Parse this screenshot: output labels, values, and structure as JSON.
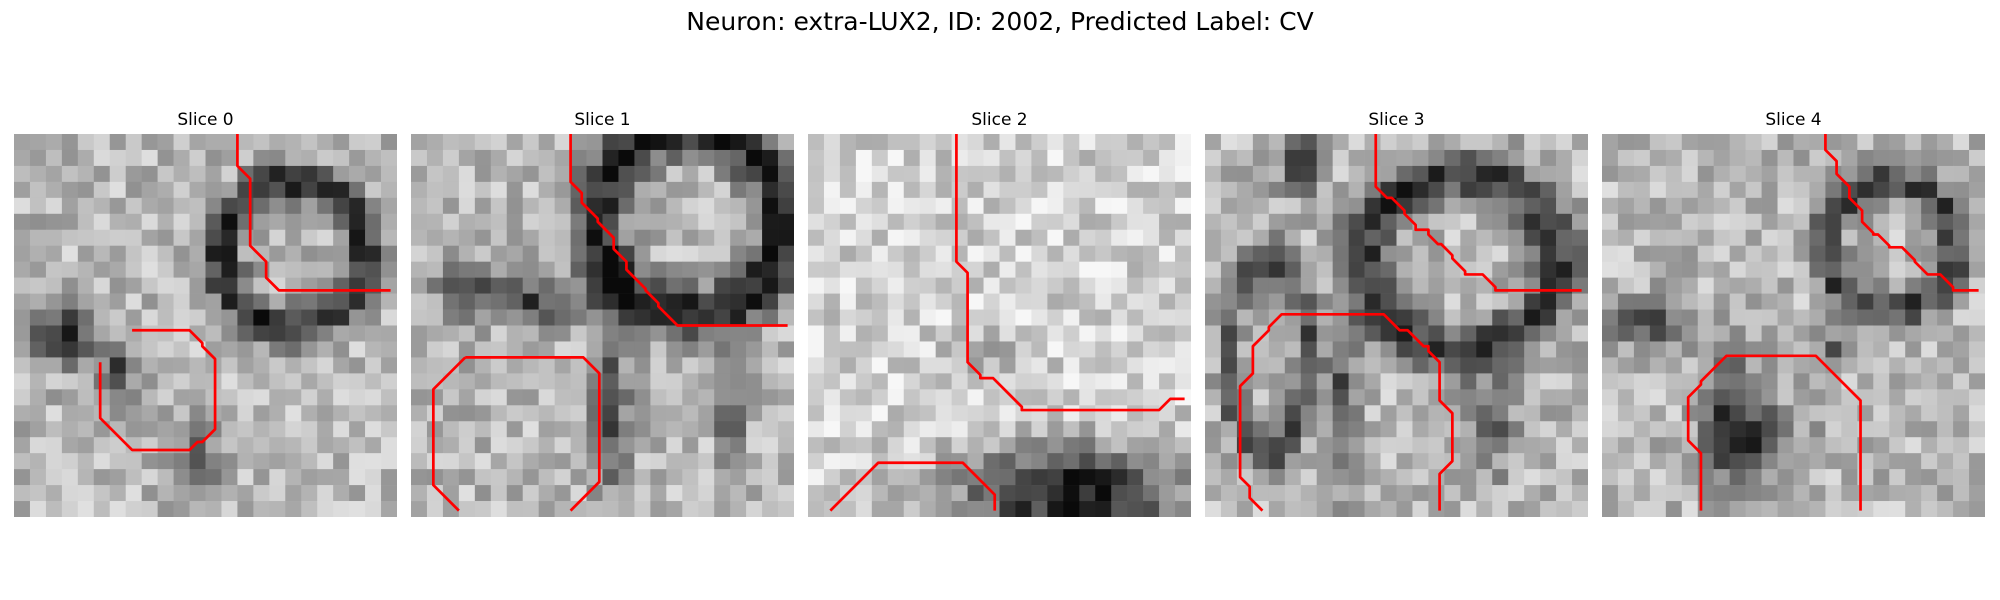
{
  "title": "Neuron: extra-LUX2, ID: 2002, Predicted Label: CV",
  "colors": {
    "contour": "#ff0000",
    "background": "#ffffff"
  },
  "grid": {
    "cols": 24,
    "rows": 24
  },
  "panels": [
    {
      "title": "Slice 0",
      "contours": [
        [
          [
            14.0,
            0.0
          ],
          [
            14.0,
            2.0
          ],
          [
            14.8,
            2.8
          ],
          [
            14.8,
            7.0
          ],
          [
            15.8,
            8.0
          ],
          [
            15.8,
            9.0
          ],
          [
            16.6,
            9.8
          ],
          [
            23.6,
            9.8
          ]
        ],
        [
          [
            7.4,
            12.3
          ],
          [
            11.0,
            12.3
          ],
          [
            11.8,
            13.1
          ],
          [
            11.8,
            13.3
          ],
          [
            12.6,
            14.1
          ],
          [
            12.6,
            18.5
          ],
          [
            11.8,
            19.3
          ],
          [
            11.5,
            19.3
          ],
          [
            11.0,
            19.8
          ],
          [
            7.4,
            19.8
          ],
          [
            5.4,
            17.8
          ],
          [
            5.4,
            14.3
          ]
        ]
      ]
    },
    {
      "title": "Slice 1",
      "contours": [
        [
          [
            10.0,
            0.0
          ],
          [
            10.0,
            3.0
          ],
          [
            10.7,
            3.7
          ],
          [
            10.7,
            4.3
          ],
          [
            11.7,
            5.3
          ],
          [
            11.7,
            5.5
          ],
          [
            12.7,
            6.5
          ],
          [
            12.7,
            7.2
          ],
          [
            13.5,
            8.0
          ],
          [
            13.5,
            8.5
          ],
          [
            14.7,
            9.7
          ],
          [
            14.7,
            9.8
          ],
          [
            15.5,
            10.6
          ],
          [
            15.5,
            10.8
          ],
          [
            16.7,
            12.0
          ],
          [
            23.6,
            12.0
          ]
        ],
        [
          [
            3.4,
            14.0
          ],
          [
            10.8,
            14.0
          ],
          [
            11.8,
            15.0
          ],
          [
            11.8,
            21.8
          ],
          [
            10.0,
            23.6
          ]
        ],
        [
          [
            3.4,
            14.0
          ],
          [
            1.4,
            16.0
          ],
          [
            1.4,
            22.0
          ],
          [
            3.0,
            23.6
          ]
        ]
      ]
    },
    {
      "title": "Slice 2",
      "contours": [
        [
          [
            9.3,
            0.0
          ],
          [
            9.3,
            8.0
          ],
          [
            10.0,
            8.7
          ],
          [
            10.0,
            14.3
          ],
          [
            10.8,
            15.1
          ],
          [
            10.8,
            15.3
          ],
          [
            11.6,
            15.3
          ],
          [
            12.6,
            16.3
          ],
          [
            13.4,
            17.1
          ],
          [
            13.4,
            17.3
          ],
          [
            22.0,
            17.3
          ],
          [
            22.7,
            16.6
          ],
          [
            23.6,
            16.6
          ]
        ],
        [
          [
            1.4,
            23.6
          ],
          [
            4.4,
            20.6
          ],
          [
            9.7,
            20.6
          ],
          [
            10.9,
            21.8
          ],
          [
            11.7,
            22.6
          ],
          [
            11.7,
            23.6
          ]
        ]
      ]
    },
    {
      "title": "Slice 3",
      "contours": [
        [
          [
            10.7,
            0.0
          ],
          [
            10.7,
            3.3
          ],
          [
            11.4,
            4.0
          ],
          [
            11.7,
            4.0
          ],
          [
            12.5,
            4.8
          ],
          [
            12.5,
            5.0
          ],
          [
            13.2,
            5.7
          ],
          [
            13.2,
            6.0
          ],
          [
            14.0,
            6.0
          ],
          [
            14.0,
            6.3
          ],
          [
            14.6,
            6.9
          ],
          [
            14.8,
            6.9
          ],
          [
            15.5,
            7.6
          ],
          [
            15.5,
            7.8
          ],
          [
            16.3,
            8.6
          ],
          [
            16.3,
            8.8
          ],
          [
            17.4,
            8.8
          ],
          [
            18.2,
            9.6
          ],
          [
            18.2,
            9.8
          ],
          [
            23.6,
            9.8
          ]
        ],
        [
          [
            14.7,
            23.6
          ],
          [
            14.7,
            21.3
          ],
          [
            15.5,
            20.5
          ],
          [
            15.5,
            17.5
          ],
          [
            14.7,
            16.7
          ],
          [
            14.7,
            14.3
          ],
          [
            14.0,
            13.6
          ],
          [
            14.0,
            13.3
          ],
          [
            13.7,
            13.3
          ],
          [
            12.7,
            12.3
          ],
          [
            12.2,
            12.3
          ],
          [
            11.2,
            11.3
          ],
          [
            4.8,
            11.3
          ],
          [
            4.0,
            12.1
          ],
          [
            4.0,
            12.3
          ],
          [
            3.0,
            13.3
          ],
          [
            3.0,
            15.0
          ],
          [
            2.2,
            15.8
          ],
          [
            2.2,
            21.5
          ],
          [
            2.8,
            22.1
          ],
          [
            2.8,
            22.8
          ],
          [
            3.6,
            23.6
          ]
        ]
      ]
    },
    {
      "title": "Slice 4",
      "contours": [
        [
          [
            14.0,
            0.0
          ],
          [
            14.0,
            1.0
          ],
          [
            14.7,
            1.7
          ],
          [
            14.7,
            2.5
          ],
          [
            15.5,
            3.3
          ],
          [
            15.5,
            4.0
          ],
          [
            16.3,
            4.8
          ],
          [
            16.3,
            5.5
          ],
          [
            17.0,
            6.2
          ],
          [
            17.0,
            6.3
          ],
          [
            17.3,
            6.3
          ],
          [
            18.0,
            7.0
          ],
          [
            18.0,
            7.1
          ],
          [
            18.8,
            7.1
          ],
          [
            19.6,
            7.9
          ],
          [
            19.6,
            8.0
          ],
          [
            20.4,
            8.8
          ],
          [
            21.2,
            8.8
          ],
          [
            22.0,
            9.6
          ],
          [
            22.0,
            9.8
          ],
          [
            23.6,
            9.8
          ]
        ],
        [
          [
            6.2,
            23.6
          ],
          [
            6.2,
            20.0
          ],
          [
            5.4,
            19.2
          ],
          [
            5.4,
            16.5
          ],
          [
            6.2,
            15.7
          ],
          [
            6.2,
            15.5
          ],
          [
            7.8,
            13.9
          ],
          [
            13.4,
            13.9
          ],
          [
            16.2,
            16.7
          ],
          [
            16.2,
            23.6
          ]
        ]
      ]
    }
  ]
}
